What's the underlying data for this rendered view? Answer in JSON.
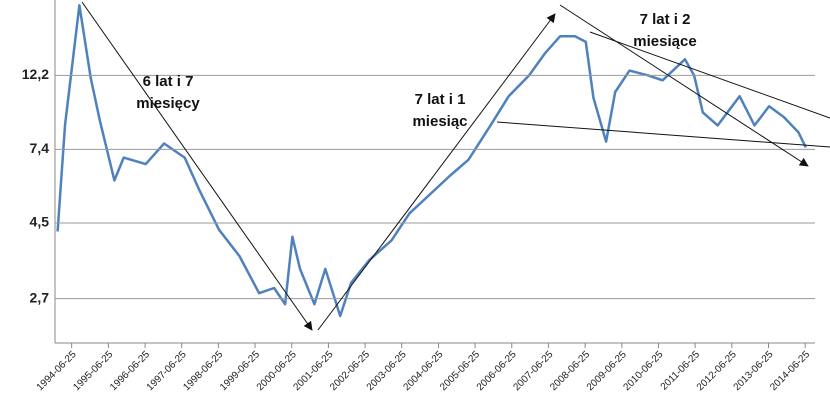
{
  "chart_data": {
    "type": "line",
    "log_scale": true,
    "grid": true,
    "x": [
      "1994-02-05",
      "1994-04-20",
      "1994-09-10",
      "1995-01-01",
      "1995-04-01",
      "1995-08-25",
      "1995-11-25",
      "1996-07-01",
      "1997-01-01",
      "1997-07-25",
      "1997-12-20",
      "1998-07-01",
      "1999-01-20",
      "1999-08-05",
      "2000-01-01",
      "2000-04-20",
      "2000-07-01",
      "2000-09-15",
      "2001-02-05",
      "2001-05-25",
      "2001-10-20",
      "2002-02-05",
      "2002-08-05",
      "2003-03-15",
      "2003-09-10",
      "2004-03-15",
      "2004-10-20",
      "2005-04-20",
      "2005-11-25",
      "2006-05-25",
      "2006-12-15",
      "2007-05-25",
      "2007-10-20",
      "2008-03-15",
      "2008-07-01",
      "2008-09-15",
      "2009-01-20",
      "2009-04-20",
      "2009-09-10",
      "2010-03-15",
      "2010-08-05",
      "2011-03-15",
      "2011-06-15",
      "2011-09-10",
      "2012-02-05",
      "2012-09-10",
      "2013-02-05",
      "2013-07-01",
      "2013-11-25",
      "2014-04-20",
      "2014-07-01"
    ],
    "series": [
      {
        "color": "#4f81bd",
        "values": [
          4.25,
          8.7,
          19.6,
          12.0,
          9.0,
          6.0,
          7.0,
          6.7,
          7.7,
          7.0,
          5.6,
          4.3,
          3.6,
          2.8,
          2.9,
          2.6,
          4.1,
          3.3,
          2.6,
          3.3,
          2.4,
          3.0,
          3.5,
          4.0,
          4.8,
          5.4,
          6.2,
          6.9,
          8.7,
          10.6,
          12.2,
          14.2,
          15.9,
          15.9,
          15.3,
          10.5,
          7.8,
          10.9,
          12.6,
          12.2,
          11.8,
          13.6,
          12.2,
          9.5,
          8.7,
          10.6,
          8.7,
          9.9,
          9.2,
          8.3,
          7.5
        ]
      }
    ],
    "xlim": [
      "1994-01-10",
      "2014-10-01"
    ],
    "xticks": [
      "1994-06-25",
      "1995-06-25",
      "1996-06-25",
      "1997-06-25",
      "1998-06-25",
      "1999-06-25",
      "2000-06-25",
      "2001-06-25",
      "2002-06-25",
      "2003-06-25",
      "2004-06-25",
      "2005-06-25",
      "2006-06-25",
      "2007-06-25",
      "2008-06-25",
      "2009-06-25",
      "2010-06-25",
      "2011-06-25",
      "2012-06-25",
      "2013-06-25",
      "2014-06-25"
    ],
    "ylim": [
      2.0,
      20.3
    ],
    "yticks": [
      {
        "value": 2.7,
        "label": "2,7"
      },
      {
        "value": 4.5,
        "label": "4,5"
      },
      {
        "value": 7.4,
        "label": "7,4"
      },
      {
        "value": 12.2,
        "label": "12,2"
      }
    ],
    "annotations": [
      {
        "lines": [
          "6 lat i 7",
          "miesięcy"
        ]
      },
      {
        "lines": [
          "7 lat i 1",
          "miesiąc"
        ]
      },
      {
        "lines": [
          "7 lat i 2",
          "miesiące"
        ]
      }
    ]
  }
}
